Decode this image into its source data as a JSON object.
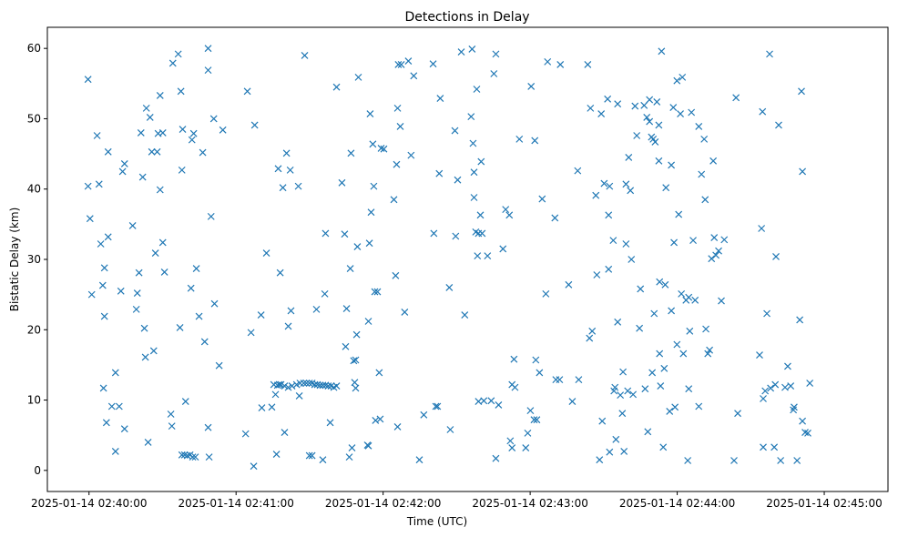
{
  "chart_data": {
    "type": "scatter",
    "title": "Detections in Delay",
    "xlabel": "Time (UTC)",
    "ylabel": "Bistatic Delay (km)",
    "x_unit": "seconds after 2025-01-14 02:40:00 UTC",
    "xlim": [
      -17,
      326
    ],
    "ylim": [
      -3,
      63
    ],
    "grid": false,
    "marker": "x",
    "color": "#1f77b4",
    "xticks": [
      {
        "value": 0,
        "label": "2025-01-14 02:40:00"
      },
      {
        "value": 60,
        "label": "2025-01-14 02:41:00"
      },
      {
        "value": 120,
        "label": "2025-01-14 02:42:00"
      },
      {
        "value": 180,
        "label": "2025-01-14 02:43:00"
      },
      {
        "value": 240,
        "label": "2025-01-14 02:44:00"
      },
      {
        "value": 300,
        "label": "2025-01-14 02:45:00"
      }
    ],
    "yticks": [
      {
        "value": 0,
        "label": "0"
      },
      {
        "value": 10,
        "label": "10"
      },
      {
        "value": 20,
        "label": "20"
      },
      {
        "value": 30,
        "label": "30"
      },
      {
        "value": 40,
        "label": "40"
      },
      {
        "value": 50,
        "label": "50"
      },
      {
        "value": 60,
        "label": "60"
      }
    ],
    "points": [
      [
        -0.4,
        55.6
      ],
      [
        -0.4,
        40.4
      ],
      [
        0.4,
        35.8
      ],
      [
        1.1,
        25.0
      ],
      [
        3.3,
        47.6
      ],
      [
        4.1,
        40.7
      ],
      [
        4.8,
        32.2
      ],
      [
        5.6,
        26.3
      ],
      [
        5.9,
        11.7
      ],
      [
        6.3,
        28.8
      ],
      [
        6.3,
        21.9
      ],
      [
        7.1,
        6.8
      ],
      [
        7.8,
        33.2
      ],
      [
        7.8,
        45.3
      ],
      [
        9.3,
        9.1
      ],
      [
        10.8,
        13.9
      ],
      [
        10.8,
        2.7
      ],
      [
        12.3,
        9.1
      ],
      [
        13.0,
        25.5
      ],
      [
        13.7,
        42.5
      ],
      [
        14.5,
        43.6
      ],
      [
        14.5,
        5.9
      ],
      [
        17.8,
        34.8
      ],
      [
        19.3,
        22.9
      ],
      [
        19.7,
        25.2
      ],
      [
        20.4,
        28.1
      ],
      [
        21.2,
        48.0
      ],
      [
        21.9,
        41.7
      ],
      [
        22.6,
        20.2
      ],
      [
        23.0,
        16.1
      ],
      [
        23.4,
        51.5
      ],
      [
        24.1,
        4.0
      ],
      [
        24.9,
        50.2
      ],
      [
        25.6,
        45.3
      ],
      [
        26.4,
        17.0
      ],
      [
        27.1,
        30.9
      ],
      [
        27.8,
        45.3
      ],
      [
        28.2,
        47.9
      ],
      [
        29.0,
        39.9
      ],
      [
        29.0,
        53.3
      ],
      [
        30.1,
        32.4
      ],
      [
        30.1,
        48.0
      ],
      [
        30.8,
        28.2
      ],
      [
        33.4,
        8.0
      ],
      [
        33.8,
        6.3
      ],
      [
        34.2,
        57.9
      ],
      [
        36.4,
        59.2
      ],
      [
        37.1,
        20.3
      ],
      [
        37.5,
        53.9
      ],
      [
        37.9,
        42.7
      ],
      [
        38.2,
        48.5
      ],
      [
        39.4,
        9.8
      ],
      [
        41.6,
        25.9
      ],
      [
        42.0,
        47.0
      ],
      [
        42.7,
        47.9
      ],
      [
        43.8,
        28.7
      ],
      [
        44.9,
        21.9
      ],
      [
        46.4,
        45.2
      ],
      [
        47.2,
        18.3
      ],
      [
        48.6,
        60.0
      ],
      [
        48.6,
        56.9
      ],
      [
        48.6,
        6.1
      ],
      [
        49.0,
        1.9
      ],
      [
        49.8,
        36.1
      ],
      [
        50.9,
        50.0
      ],
      [
        51.2,
        23.7
      ],
      [
        53.1,
        14.9
      ],
      [
        54.6,
        48.4
      ],
      [
        37.9,
        2.2
      ],
      [
        39.0,
        2.2
      ],
      [
        40.1,
        2.1
      ],
      [
        41.2,
        2.2
      ],
      [
        42.3,
        1.9
      ],
      [
        43.4,
        1.9
      ],
      [
        63.9,
        5.2
      ],
      [
        64.6,
        53.9
      ],
      [
        66.1,
        19.6
      ],
      [
        67.2,
        0.6
      ],
      [
        67.6,
        49.1
      ],
      [
        70.2,
        22.1
      ],
      [
        70.5,
        8.9
      ],
      [
        72.4,
        30.9
      ],
      [
        74.6,
        9.0
      ],
      [
        76.1,
        10.8
      ],
      [
        76.5,
        2.3
      ],
      [
        77.2,
        42.9
      ],
      [
        77.6,
        12.2
      ],
      [
        78.0,
        28.1
      ],
      [
        79.1,
        40.2
      ],
      [
        79.8,
        5.4
      ],
      [
        80.6,
        45.1
      ],
      [
        81.3,
        20.5
      ],
      [
        82.1,
        42.7
      ],
      [
        82.4,
        22.7
      ],
      [
        85.4,
        40.4
      ],
      [
        85.8,
        10.6
      ],
      [
        88.0,
        59.0
      ],
      [
        89.9,
        2.1
      ],
      [
        91.0,
        2.1
      ],
      [
        92.8,
        22.9
      ],
      [
        95.4,
        1.5
      ],
      [
        96.2,
        25.1
      ],
      [
        96.5,
        33.7
      ],
      [
        98.4,
        6.8
      ],
      [
        101.0,
        54.5
      ],
      [
        103.2,
        40.9
      ],
      [
        104.3,
        33.6
      ],
      [
        104.7,
        17.6
      ],
      [
        105.1,
        23.0
      ],
      [
        106.2,
        1.9
      ],
      [
        106.6,
        28.7
      ],
      [
        106.9,
        45.1
      ],
      [
        107.3,
        3.2
      ],
      [
        108.0,
        15.6
      ],
      [
        108.4,
        12.5
      ],
      [
        108.8,
        15.7
      ],
      [
        108.8,
        11.7
      ],
      [
        109.2,
        19.3
      ],
      [
        109.5,
        31.8
      ],
      [
        109.9,
        55.9
      ],
      [
        113.6,
        3.6
      ],
      [
        114.0,
        3.5
      ],
      [
        114.0,
        21.2
      ],
      [
        114.4,
        32.3
      ],
      [
        114.7,
        50.7
      ],
      [
        115.1,
        36.7
      ],
      [
        115.8,
        46.4
      ],
      [
        116.2,
        40.4
      ],
      [
        116.6,
        25.4
      ],
      [
        116.9,
        7.1
      ],
      [
        117.7,
        25.4
      ],
      [
        118.4,
        13.9
      ],
      [
        118.8,
        7.3
      ],
      [
        119.2,
        45.8
      ],
      [
        120.3,
        45.7
      ],
      [
        75.4,
        12.2
      ],
      [
        76.9,
        12.1
      ],
      [
        78.3,
        12.2
      ],
      [
        79.8,
        12.0
      ],
      [
        81.3,
        11.8
      ],
      [
        82.8,
        12.0
      ],
      [
        84.7,
        12.2
      ],
      [
        86.1,
        12.4
      ],
      [
        87.6,
        12.4
      ],
      [
        88.7,
        12.4
      ],
      [
        89.9,
        12.4
      ],
      [
        91.0,
        12.4
      ],
      [
        92.1,
        12.2
      ],
      [
        93.2,
        12.2
      ],
      [
        94.3,
        12.1
      ],
      [
        95.4,
        12.1
      ],
      [
        96.5,
        12.1
      ],
      [
        97.6,
        12.0
      ],
      [
        98.8,
        12.0
      ],
      [
        99.9,
        11.8
      ],
      [
        101.0,
        12.0
      ],
      [
        124.4,
        38.5
      ],
      [
        125.1,
        27.7
      ],
      [
        125.5,
        43.5
      ],
      [
        125.9,
        51.5
      ],
      [
        125.9,
        6.2
      ],
      [
        126.2,
        57.7
      ],
      [
        127.0,
        48.9
      ],
      [
        127.4,
        57.7
      ],
      [
        128.8,
        22.5
      ],
      [
        130.3,
        58.2
      ],
      [
        131.4,
        44.8
      ],
      [
        132.5,
        56.1
      ],
      [
        134.8,
        1.5
      ],
      [
        136.6,
        7.9
      ],
      [
        140.4,
        57.8
      ],
      [
        140.7,
        33.7
      ],
      [
        141.5,
        9.1
      ],
      [
        142.2,
        9.1
      ],
      [
        142.9,
        42.2
      ],
      [
        143.3,
        52.9
      ],
      [
        147.0,
        26.0
      ],
      [
        147.4,
        5.8
      ],
      [
        149.3,
        48.3
      ],
      [
        149.6,
        33.3
      ],
      [
        150.4,
        41.3
      ],
      [
        151.9,
        59.5
      ],
      [
        153.3,
        22.1
      ],
      [
        155.9,
        50.3
      ],
      [
        156.3,
        59.9
      ],
      [
        156.7,
        46.5
      ],
      [
        157.1,
        42.4
      ],
      [
        157.1,
        38.8
      ],
      [
        157.8,
        33.9
      ],
      [
        158.2,
        54.2
      ],
      [
        158.5,
        30.5
      ],
      [
        158.9,
        9.8
      ],
      [
        158.9,
        33.7
      ],
      [
        159.7,
        36.3
      ],
      [
        160.0,
        43.9
      ],
      [
        160.4,
        33.7
      ],
      [
        161.1,
        9.9
      ],
      [
        162.6,
        30.5
      ],
      [
        164.1,
        9.9
      ],
      [
        165.2,
        56.4
      ],
      [
        166.0,
        1.7
      ],
      [
        166.0,
        59.2
      ],
      [
        167.1,
        9.3
      ],
      [
        168.9,
        31.5
      ],
      [
        170.0,
        37.1
      ],
      [
        171.5,
        36.3
      ],
      [
        171.9,
        4.2
      ],
      [
        172.6,
        12.2
      ],
      [
        172.6,
        3.2
      ],
      [
        173.4,
        15.8
      ],
      [
        173.8,
        11.8
      ],
      [
        175.6,
        47.1
      ],
      [
        178.2,
        3.2
      ],
      [
        179.0,
        5.3
      ],
      [
        180.1,
        8.5
      ],
      [
        180.4,
        54.6
      ],
      [
        181.6,
        7.2
      ],
      [
        181.9,
        46.9
      ],
      [
        182.3,
        15.7
      ],
      [
        182.7,
        7.2
      ],
      [
        183.8,
        13.9
      ],
      [
        184.9,
        38.6
      ],
      [
        186.4,
        25.1
      ],
      [
        187.1,
        58.1
      ],
      [
        190.1,
        35.9
      ],
      [
        190.5,
        12.9
      ],
      [
        192.0,
        12.9
      ],
      [
        192.3,
        57.7
      ],
      [
        195.7,
        26.4
      ],
      [
        197.2,
        9.8
      ],
      [
        199.4,
        42.6
      ],
      [
        199.8,
        12.9
      ],
      [
        203.5,
        57.7
      ],
      [
        204.2,
        18.8
      ],
      [
        204.6,
        51.5
      ],
      [
        205.3,
        19.8
      ],
      [
        206.8,
        39.1
      ],
      [
        207.2,
        27.8
      ],
      [
        208.3,
        1.5
      ],
      [
        209.0,
        50.7
      ],
      [
        209.4,
        7.0
      ],
      [
        210.2,
        40.8
      ],
      [
        211.6,
        52.8
      ],
      [
        212.0,
        36.3
      ],
      [
        212.0,
        28.6
      ],
      [
        212.4,
        40.4
      ],
      [
        212.4,
        2.6
      ],
      [
        213.9,
        32.7
      ],
      [
        214.2,
        11.3
      ],
      [
        214.6,
        11.8
      ],
      [
        215.0,
        4.4
      ],
      [
        215.7,
        52.1
      ],
      [
        215.7,
        21.1
      ],
      [
        216.8,
        10.7
      ],
      [
        217.6,
        8.1
      ],
      [
        217.9,
        14.0
      ],
      [
        218.3,
        2.7
      ],
      [
        219.1,
        40.7
      ],
      [
        219.1,
        32.2
      ],
      [
        219.8,
        11.3
      ],
      [
        220.2,
        44.5
      ],
      [
        220.9,
        39.8
      ],
      [
        221.3,
        30.0
      ],
      [
        222.0,
        10.8
      ],
      [
        222.8,
        51.8
      ],
      [
        223.5,
        47.6
      ],
      [
        224.6,
        20.2
      ],
      [
        225.0,
        25.8
      ],
      [
        226.5,
        51.9
      ],
      [
        226.9,
        11.6
      ],
      [
        227.6,
        50.2
      ],
      [
        228.0,
        5.5
      ],
      [
        228.7,
        49.6
      ],
      [
        228.7,
        52.7
      ],
      [
        229.5,
        47.4
      ],
      [
        229.8,
        13.9
      ],
      [
        230.2,
        47.1
      ],
      [
        230.6,
        22.3
      ],
      [
        231.0,
        46.7
      ],
      [
        231.7,
        52.4
      ],
      [
        232.5,
        49.1
      ],
      [
        232.5,
        44.0
      ],
      [
        232.8,
        16.6
      ],
      [
        232.8,
        26.8
      ],
      [
        233.2,
        12.0
      ],
      [
        233.6,
        59.6
      ],
      [
        234.3,
        3.3
      ],
      [
        234.7,
        14.5
      ],
      [
        235.1,
        26.4
      ],
      [
        235.4,
        40.2
      ],
      [
        236.9,
        8.4
      ],
      [
        237.6,
        43.4
      ],
      [
        237.6,
        22.7
      ],
      [
        238.4,
        51.6
      ],
      [
        238.7,
        32.4
      ],
      [
        239.1,
        9.0
      ],
      [
        239.9,
        55.4
      ],
      [
        239.9,
        17.9
      ],
      [
        240.6,
        36.4
      ],
      [
        241.3,
        50.7
      ],
      [
        241.7,
        25.1
      ],
      [
        242.1,
        55.9
      ],
      [
        242.5,
        16.6
      ],
      [
        243.6,
        24.2
      ],
      [
        244.3,
        1.4
      ],
      [
        244.7,
        24.6
      ],
      [
        244.7,
        11.6
      ],
      [
        245.1,
        19.8
      ],
      [
        245.8,
        50.9
      ],
      [
        246.5,
        32.7
      ],
      [
        247.3,
        24.2
      ],
      [
        248.8,
        9.1
      ],
      [
        248.8,
        48.9
      ],
      [
        249.9,
        42.1
      ],
      [
        251.0,
        47.1
      ],
      [
        251.4,
        38.5
      ],
      [
        251.7,
        20.1
      ],
      [
        252.5,
        16.6
      ],
      [
        253.2,
        17.1
      ],
      [
        254.0,
        30.1
      ],
      [
        254.7,
        44.0
      ],
      [
        255.1,
        33.1
      ],
      [
        255.8,
        30.6
      ],
      [
        256.9,
        31.2
      ],
      [
        258.0,
        24.1
      ],
      [
        259.2,
        32.8
      ],
      [
        263.2,
        1.4
      ],
      [
        264.0,
        53.0
      ],
      [
        264.7,
        8.1
      ],
      [
        273.6,
        16.4
      ],
      [
        274.4,
        34.4
      ],
      [
        274.8,
        51.0
      ],
      [
        275.1,
        10.2
      ],
      [
        275.1,
        3.3
      ],
      [
        275.9,
        11.3
      ],
      [
        276.6,
        22.3
      ],
      [
        277.7,
        59.2
      ],
      [
        278.1,
        11.7
      ],
      [
        279.6,
        3.3
      ],
      [
        280.0,
        12.2
      ],
      [
        280.3,
        30.4
      ],
      [
        281.4,
        49.1
      ],
      [
        282.2,
        1.4
      ],
      [
        284.0,
        11.8
      ],
      [
        285.1,
        14.8
      ],
      [
        286.3,
        12.0
      ],
      [
        287.4,
        8.6
      ],
      [
        287.7,
        9.0
      ],
      [
        288.9,
        1.4
      ],
      [
        290.0,
        21.4
      ],
      [
        290.7,
        53.9
      ],
      [
        291.1,
        42.5
      ],
      [
        291.1,
        7.0
      ],
      [
        292.2,
        5.4
      ],
      [
        293.3,
        5.3
      ],
      [
        294.1,
        12.4
      ]
    ]
  }
}
